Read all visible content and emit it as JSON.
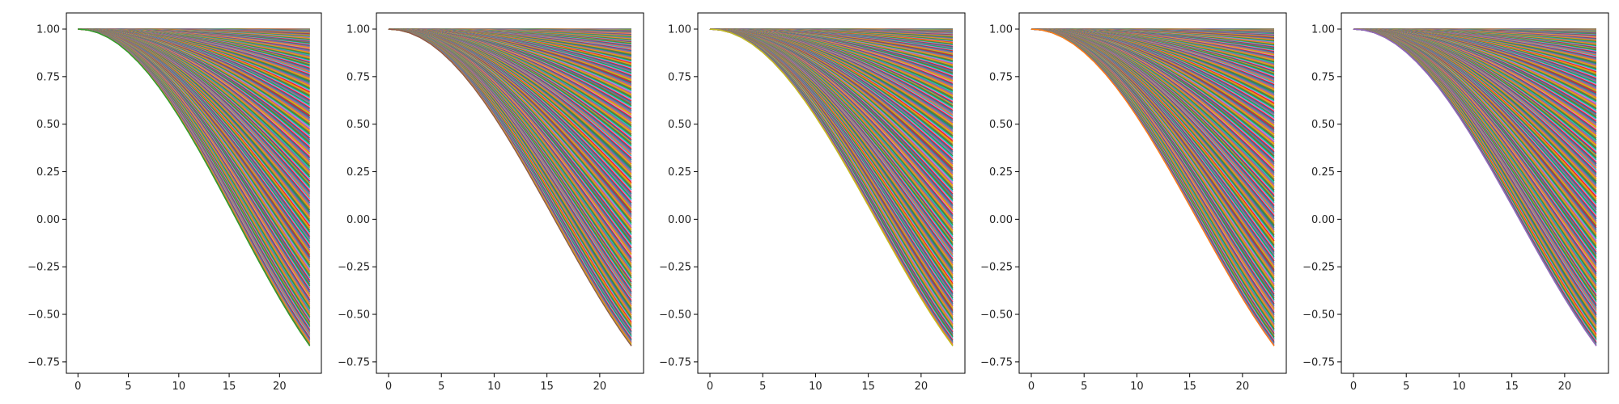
{
  "chart_data": [
    {
      "type": "line",
      "title": "",
      "xlabel": "",
      "ylabel": "",
      "x": {
        "start": 0,
        "end": 23,
        "step": 1
      },
      "xlim": [
        -1.15,
        24.15
      ],
      "ylim": [
        -0.81,
        1.085
      ],
      "xticks": [
        0,
        5,
        10,
        15,
        20
      ],
      "xtick_labels": [
        "0",
        "5",
        "10",
        "15",
        "20"
      ],
      "yticks": [
        1.0,
        0.75,
        0.5,
        0.25,
        0.0,
        -0.25,
        -0.5,
        -0.75
      ],
      "ytick_labels": [
        "1.00",
        "0.75",
        "0.50",
        "0.25",
        "0.00",
        "−0.25",
        "−0.50",
        "−0.75"
      ],
      "series_family": {
        "formula": "cos(k * x)",
        "k_min": 0.0,
        "k_max": 0.1,
        "count": 300
      },
      "grid": false,
      "legend": "none"
    },
    {
      "type": "line",
      "title": "",
      "xlabel": "",
      "ylabel": "",
      "x": {
        "start": 0,
        "end": 23,
        "step": 1
      },
      "xlim": [
        -1.15,
        24.15
      ],
      "ylim": [
        -0.81,
        1.085
      ],
      "xticks": [
        0,
        5,
        10,
        15,
        20
      ],
      "xtick_labels": [
        "0",
        "5",
        "10",
        "15",
        "20"
      ],
      "yticks": [
        1.0,
        0.75,
        0.5,
        0.25,
        0.0,
        -0.25,
        -0.5,
        -0.75
      ],
      "ytick_labels": [
        "1.00",
        "0.75",
        "0.50",
        "0.25",
        "0.00",
        "−0.25",
        "−0.50",
        "−0.75"
      ],
      "series_family": {
        "formula": "cos(k * x)",
        "k_min": 0.0,
        "k_max": 0.1,
        "count": 300
      },
      "grid": false,
      "legend": "none"
    },
    {
      "type": "line",
      "title": "",
      "xlabel": "",
      "ylabel": "",
      "x": {
        "start": 0,
        "end": 23,
        "step": 1
      },
      "xlim": [
        -1.15,
        24.15
      ],
      "ylim": [
        -0.81,
        1.085
      ],
      "xticks": [
        0,
        5,
        10,
        15,
        20
      ],
      "xtick_labels": [
        "0",
        "5",
        "10",
        "15",
        "20"
      ],
      "yticks": [
        1.0,
        0.75,
        0.5,
        0.25,
        0.0,
        -0.25,
        -0.5,
        -0.75
      ],
      "ytick_labels": [
        "1.00",
        "0.75",
        "0.50",
        "0.25",
        "0.00",
        "−0.25",
        "−0.50",
        "−0.75"
      ],
      "series_family": {
        "formula": "cos(k * x)",
        "k_min": 0.0,
        "k_max": 0.1,
        "count": 300
      },
      "grid": false,
      "legend": "none"
    },
    {
      "type": "line",
      "title": "",
      "xlabel": "",
      "ylabel": "",
      "x": {
        "start": 0,
        "end": 23,
        "step": 1
      },
      "xlim": [
        -1.15,
        24.15
      ],
      "ylim": [
        -0.81,
        1.085
      ],
      "xticks": [
        0,
        5,
        10,
        15,
        20
      ],
      "xtick_labels": [
        "0",
        "5",
        "10",
        "15",
        "20"
      ],
      "yticks": [
        1.0,
        0.75,
        0.5,
        0.25,
        0.0,
        -0.25,
        -0.5,
        -0.75
      ],
      "ytick_labels": [
        "1.00",
        "0.75",
        "0.50",
        "0.25",
        "0.00",
        "−0.25",
        "−0.50",
        "−0.75"
      ],
      "series_family": {
        "formula": "cos(k * x)",
        "k_min": 0.0,
        "k_max": 0.1,
        "count": 300
      },
      "grid": false,
      "legend": "none"
    },
    {
      "type": "line",
      "title": "",
      "xlabel": "",
      "ylabel": "",
      "x": {
        "start": 0,
        "end": 23,
        "step": 1
      },
      "xlim": [
        -1.15,
        24.15
      ],
      "ylim": [
        -0.81,
        1.085
      ],
      "xticks": [
        0,
        5,
        10,
        15,
        20
      ],
      "xtick_labels": [
        "0",
        "5",
        "10",
        "15",
        "20"
      ],
      "yticks": [
        1.0,
        0.75,
        0.5,
        0.25,
        0.0,
        -0.25,
        -0.5,
        -0.75
      ],
      "ytick_labels": [
        "1.00",
        "0.75",
        "0.50",
        "0.25",
        "0.00",
        "−0.25",
        "−0.50",
        "−0.75"
      ],
      "series_family": {
        "formula": "cos(k * x)",
        "k_min": 0.0,
        "k_max": 0.1,
        "count": 300
      },
      "grid": false,
      "legend": "none"
    }
  ],
  "palette": [
    "#1f77b4",
    "#ff7f0e",
    "#2ca02c",
    "#d62728",
    "#9467bd",
    "#8c564b",
    "#e377c2",
    "#7f7f7f",
    "#bcbd22",
    "#17becf"
  ]
}
